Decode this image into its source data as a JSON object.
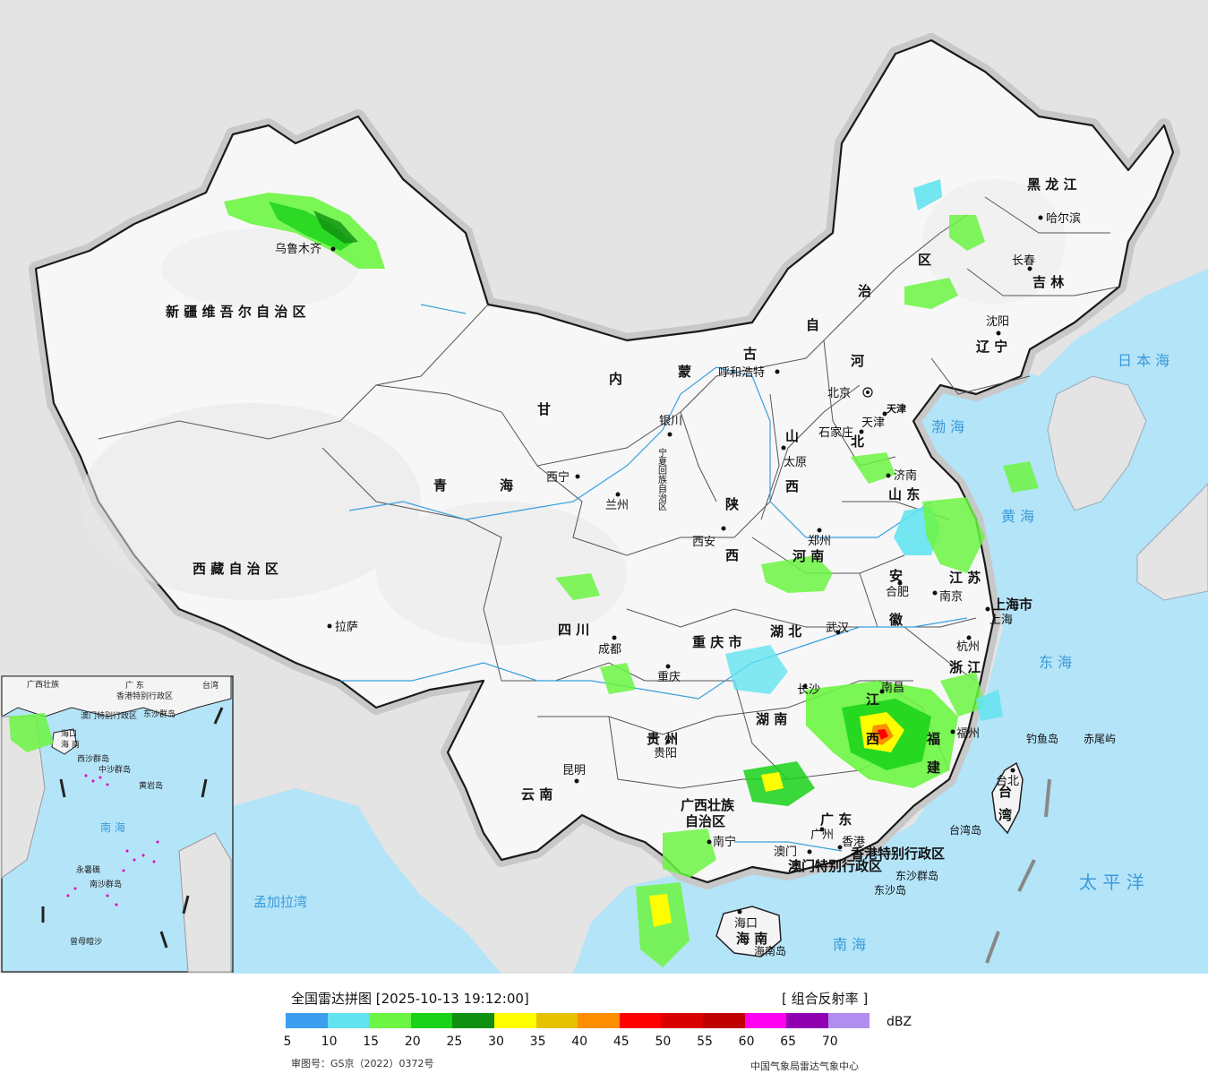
{
  "title": "全国雷达拼图 [2025-10-13 19:12:00]",
  "product": "[ 组合反射率 ]",
  "unit": "dBZ",
  "review_number": "审图号：GS京（2022）0372号",
  "agency": "中国气象局雷达气象中心",
  "scale": {
    "colors": [
      "#3d9ef0",
      "#63e3f0",
      "#6cf542",
      "#19d219",
      "#108f10",
      "#fefe00",
      "#e6c100",
      "#fe8e00",
      "#fe0000",
      "#d90000",
      "#c00000",
      "#ff00f0",
      "#9000b0",
      "#b08ef0"
    ],
    "ticks": [
      "5",
      "10",
      "15",
      "20",
      "25",
      "30",
      "35",
      "40",
      "45",
      "50",
      "55",
      "60",
      "65",
      "70"
    ]
  },
  "provinces": {
    "xinjiang": "新 疆 维 吾 尔 自 治 区",
    "xizang": "西 藏 自 治 区",
    "qinghai1": "青",
    "qinghai2": "海",
    "gansu": "甘",
    "neimenggu": [
      "内",
      "蒙",
      "古",
      "自",
      "治",
      "区"
    ],
    "heilongjiang": "黑 龙 江",
    "jilin": "吉 林",
    "liaoning": "辽 宁",
    "hebei1": "河",
    "hebei2": "北",
    "shanxi1": "山",
    "shanxi2": "西",
    "shaanxi1": "陕",
    "shaanxi2": "西",
    "shandong": "山 东",
    "henan": "河 南",
    "jiangsu": "江 苏",
    "anhui1": "安",
    "anhui2": "徽",
    "hubei": "湖 北",
    "sichuan": "四 川",
    "chongqing": "重 庆 市",
    "guizhou": "贵 州",
    "yunnan": "云 南",
    "hunan": "湖 南",
    "jiangxi1": "江",
    "jiangxi2": "西",
    "zhejiang": "浙 江",
    "fujian1": "福",
    "fujian2": "建",
    "guangxi1": "广西壮族",
    "guangxi2": "自治区",
    "guangdong": "广 东",
    "hainan": "海 南",
    "taiwan1": "台",
    "taiwan2": "湾",
    "shanghai": "上海市",
    "ningxia": "宁夏回族自治区",
    "tianjin": "天津",
    "hk": "香港特别行政区",
    "macau": "澳门特别行政区"
  },
  "cities": {
    "urumqi": "乌鲁木齐",
    "lhasa": "拉萨",
    "xining": "西宁",
    "lanzhou": "兰州",
    "yinchuan": "银川",
    "hohhot": "呼和浩特",
    "beijing": "北京",
    "tianjin": "天津",
    "shijiazhuang": "石家庄",
    "taiyuan": "太原",
    "xian": "西安",
    "zhengzhou": "郑州",
    "jinan": "济南",
    "nanjing": "南京",
    "hefei": "合肥",
    "shanghai": "上海",
    "hangzhou": "杭州",
    "wuhan": "武汉",
    "changsha": "长沙",
    "nanchang": "南昌",
    "fuzhou": "福州",
    "taibei": "台北",
    "guangzhou": "广州",
    "hongkong": "香港",
    "macau": "澳门",
    "nanning": "南宁",
    "haikou": "海口",
    "guiyang": "贵阳",
    "kunming": "昆明",
    "chengdu": "成都",
    "chongqing": "重庆",
    "shenyang": "沈阳",
    "changchun": "长春",
    "harbin": "哈尔滨"
  },
  "seas": {
    "bohai": "渤 海",
    "huanghai": "黄 海",
    "donghai": "东 海",
    "nanhai": "南 海",
    "riben": "日 本 海",
    "taiping": "太 平 洋",
    "mengjiala": "孟加拉湾"
  },
  "islands": {
    "diaoyu": "钓鱼岛",
    "chiwei": "赤尾屿",
    "dongsha": "东沙群岛",
    "dongsha2": "东沙岛",
    "hainan_island": "海南岛",
    "taiwan_island": "台湾岛"
  },
  "inset": {
    "nanhai": "南 海",
    "xisha": "西沙群岛",
    "zhongsha": "中沙群岛",
    "nansha": "南沙群岛",
    "huangyan": "黄岩岛",
    "yongshu": "永暑礁",
    "zengmu": "曾母暗沙",
    "dongsha": "东沙群岛",
    "haikou": "海口",
    "hainan": "海 南",
    "guangxi": "广西壮族",
    "guangdong": "广 东",
    "taiwan": "台湾",
    "hk": "香港特别行政区",
    "macau": "澳门特别行政区"
  }
}
